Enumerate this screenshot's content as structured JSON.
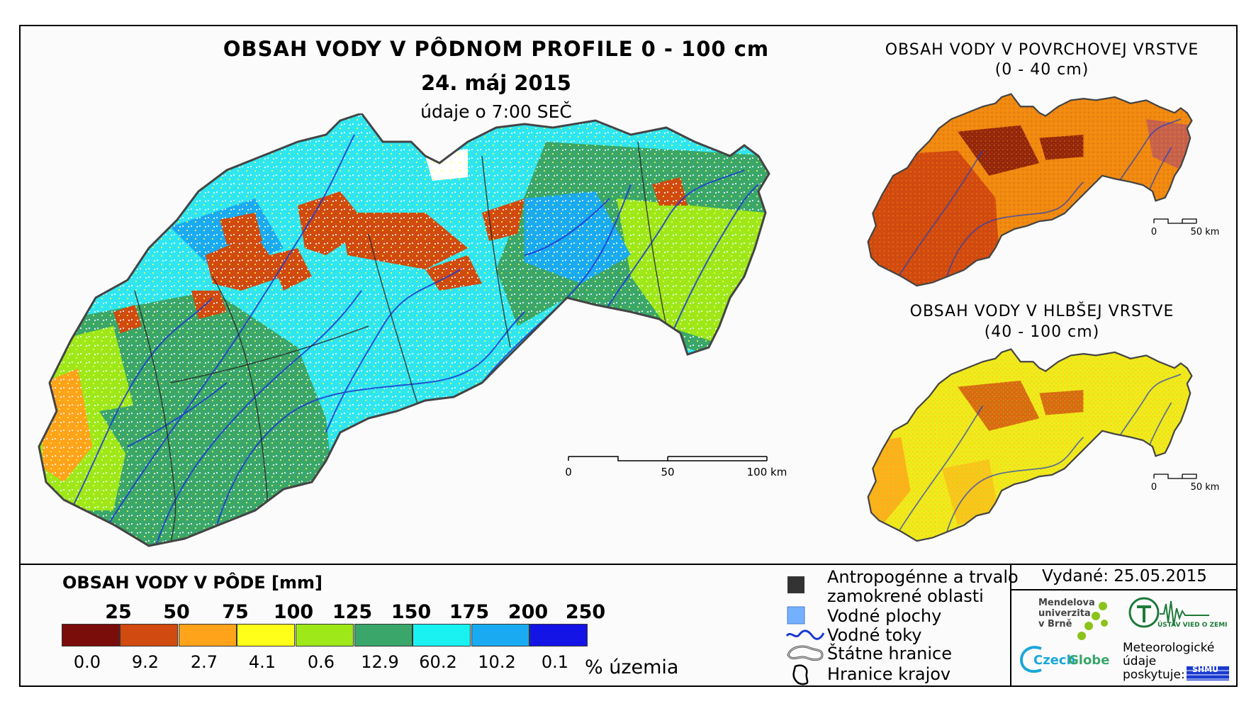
{
  "main": {
    "title": "OBSAH VODY V PÔDNOM PROFILE 0 - 100 cm",
    "date": "24. máj 2015",
    "subtitle": "údaje o 7:00 SEČ",
    "scale": [
      "0",
      "50",
      "100 km"
    ]
  },
  "surface_map": {
    "title": "OBSAH VODY V POVRCHOVEJ VRSTVE",
    "subtitle": "(0 - 40 cm)",
    "scale": [
      "0",
      "50 km"
    ],
    "dominant_color": "#f08a10"
  },
  "deep_map": {
    "title": "OBSAH VODY V HLBŠEJ VRSTVE",
    "subtitle": "(40 - 100 cm)",
    "scale": [
      "0",
      "50 km"
    ],
    "dominant_color": "#f2ea1c"
  },
  "legend": {
    "title": "OBSAH VODY V PÔDE [mm]",
    "thresholds": [
      "25",
      "50",
      "75",
      "100",
      "125",
      "150",
      "175",
      "200",
      "250"
    ],
    "bins": [
      {
        "color": "#7a0c0a",
        "percent": "0.0"
      },
      {
        "color": "#d14a0f",
        "percent": "9.2"
      },
      {
        "color": "#ffa31a",
        "percent": "2.7"
      },
      {
        "color": "#ffff1a",
        "percent": "4.1"
      },
      {
        "color": "#9ee81a",
        "percent": "0.6"
      },
      {
        "color": "#3aa66a",
        "percent": "12.9"
      },
      {
        "color": "#1af2f2",
        "percent": "60.2"
      },
      {
        "color": "#1aaaf2",
        "percent": "10.2"
      },
      {
        "color": "#1414e6",
        "percent": "0.1"
      }
    ],
    "percent_unit": "% územia"
  },
  "symbols": {
    "anthropogenic_1": "Antropogénne a trvalo",
    "anthropogenic_2": "zamokrené oblasti",
    "water_bodies": "Vodné plochy",
    "streams": "Vodné toky",
    "state_border": "Štátne hranice",
    "region_border": "Hranice krajov"
  },
  "issued": "Vydané: 25.05.2015",
  "logos": {
    "mendel_1": "Mendelova",
    "mendel_2": "univerzita",
    "mendel_3": "v Brně",
    "czechglobe_a": "Czech",
    "czechglobe_b": "Globe",
    "ustav": "ÚSTAV VIED O ZEMI",
    "meteo_1": "Meteorologické",
    "meteo_2": "údaje",
    "meteo_3": "poskytuje:",
    "shmu": "SHMÚ"
  }
}
